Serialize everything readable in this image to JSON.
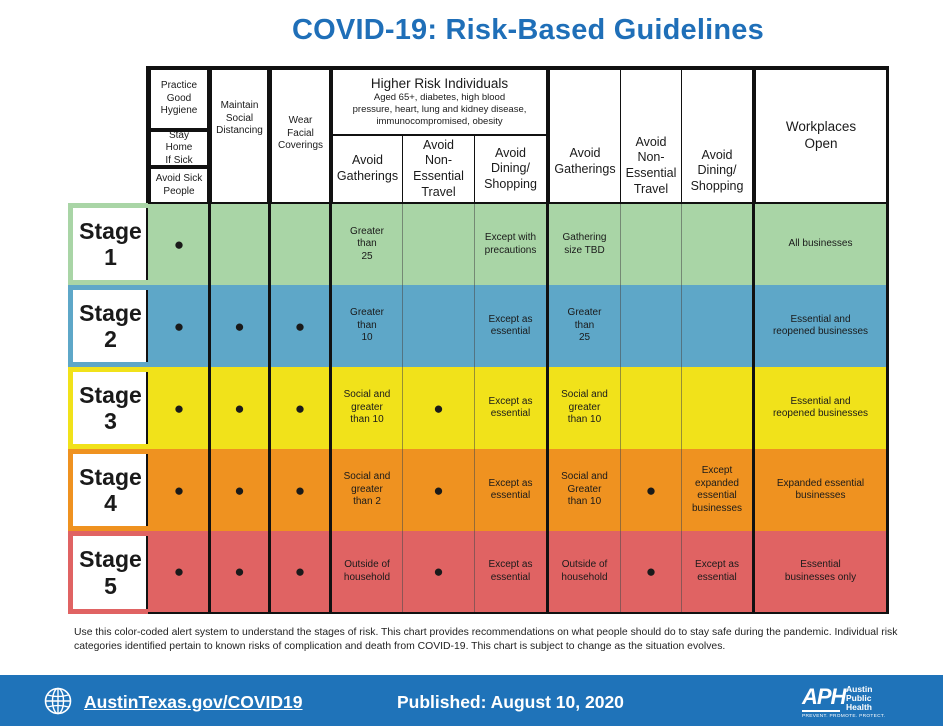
{
  "title": "COVID-19: Risk-Based Guidelines",
  "colors": {
    "title": "#1f6fb8",
    "stage_1": "#a9d5a6",
    "stage_2": "#5ea7c8",
    "stage_3": "#f1e21a",
    "stage_4": "#ef9220",
    "stage_5": "#e06363",
    "footer": "#1f73b9"
  },
  "headers": {
    "practice_good_hygiene": "Practice\nGood\nHygiene",
    "stay_home_if_sick": "Stay Home\nIf Sick",
    "avoid_sick_people": "Avoid Sick\nPeople",
    "maintain_social_distancing": "Maintain\nSocial\nDistancing",
    "wear_facial_coverings": "Wear Facial\nCoverings",
    "higher_risk_title": "Higher Risk Individuals",
    "higher_risk_desc": "Aged 65+, diabetes, high blood\npressure, heart, lung and kidney disease,\nimmunocompromised, obesity",
    "hr_avoid_gatherings": "Avoid\nGatherings",
    "hr_avoid_travel": "Avoid\nNon-\nEssential\nTravel",
    "hr_avoid_dining": "Avoid\nDining/\nShopping",
    "avoid_gatherings": "Avoid\nGatherings",
    "avoid_travel": "Avoid\nNon-\nEssential\nTravel",
    "avoid_dining": "Avoid\nDining/\nShopping",
    "workplaces_open": "Workplaces\nOpen"
  },
  "stages": [
    {
      "label": "Stage",
      "number": "1",
      "hygiene": "●",
      "distancing": "",
      "coverings": "",
      "hr_gatherings": "Greater\nthan\n25",
      "hr_travel": "",
      "hr_dining": "Except with\nprecautions",
      "gatherings": "Gathering\nsize TBD",
      "travel": "",
      "dining": "",
      "workplaces": "All businesses"
    },
    {
      "label": "Stage",
      "number": "2",
      "hygiene": "●",
      "distancing": "●",
      "coverings": "●",
      "hr_gatherings": "Greater\nthan\n10",
      "hr_travel": "",
      "hr_dining": "Except as\nessential",
      "gatherings": "Greater\nthan\n25",
      "travel": "",
      "dining": "",
      "workplaces": "Essential and\nreopened businesses"
    },
    {
      "label": "Stage",
      "number": "3",
      "hygiene": "●",
      "distancing": "●",
      "coverings": "●",
      "hr_gatherings": "Social and\ngreater\nthan 10",
      "hr_travel": "●",
      "hr_dining": "Except as\nessential",
      "gatherings": "Social and\ngreater\nthan 10",
      "travel": "",
      "dining": "",
      "workplaces": "Essential and\nreopened businesses"
    },
    {
      "label": "Stage",
      "number": "4",
      "hygiene": "●",
      "distancing": "●",
      "coverings": "●",
      "hr_gatherings": "Social and\ngreater\nthan 2",
      "hr_travel": "●",
      "hr_dining": "Except as\nessential",
      "gatherings": "Social and\nGreater\nthan 10",
      "travel": "●",
      "dining": "Except\nexpanded\nessential\nbusinesses",
      "workplaces": "Expanded essential\nbusinesses"
    },
    {
      "label": "Stage",
      "number": "5",
      "hygiene": "●",
      "distancing": "●",
      "coverings": "●",
      "hr_gatherings": "Outside of\nhousehold",
      "hr_travel": "●",
      "hr_dining": "Except as\nessential",
      "gatherings": "Outside of\nhousehold",
      "travel": "●",
      "dining": "Except as\nessential",
      "workplaces": "Essential\nbusinesses only"
    }
  ],
  "note": "Use this color-coded alert system to understand the stages of risk. This chart provides recommendations on what people should do to stay safe during the pandemic. Individual risk categories identified pertain to known risks of complication and death from COVID-19. This chart is subject to change as the situation evolves.",
  "footer": {
    "globe_icon": "globe-icon",
    "url": "AustinTexas.gov/COVID19",
    "published": "Published: August 10, 2020",
    "logo_letters": "APH",
    "logo_name": "Austin\nPublic\nHealth",
    "logo_tagline": "PREVENT. PROMOTE. PROTECT."
  }
}
